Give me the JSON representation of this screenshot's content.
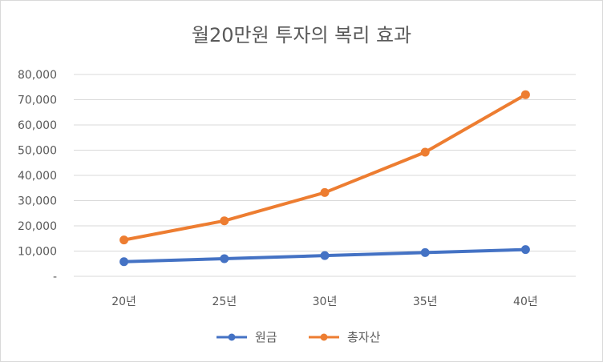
{
  "chart_data": {
    "type": "line",
    "title": "월20만원 투자의 복리 효과",
    "categories": [
      "20년",
      "25년",
      "30년",
      "35년",
      "40년"
    ],
    "series": [
      {
        "name": "원금",
        "color": "#4472C4",
        "values": [
          5800,
          7000,
          8200,
          9400,
          10600
        ]
      },
      {
        "name": "총자산",
        "color": "#ED7D31",
        "values": [
          14400,
          22000,
          33200,
          49200,
          72000
        ]
      }
    ],
    "ylim": [
      0,
      80000
    ],
    "yticks": [
      0,
      10000,
      20000,
      30000,
      40000,
      50000,
      60000,
      70000,
      80000
    ],
    "ytick_labels": [
      "-",
      "10,000",
      "20,000",
      "30,000",
      "40,000",
      "50,000",
      "60,000",
      "70,000",
      "80,000"
    ],
    "grid": true,
    "legend": "bottom",
    "xlabel": "",
    "ylabel": ""
  }
}
